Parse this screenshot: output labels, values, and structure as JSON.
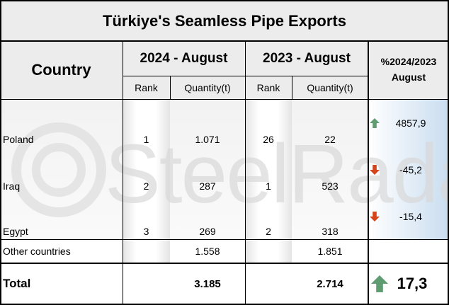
{
  "title": "Türkiye's Seamless Pipe Exports",
  "header": {
    "country": "Country",
    "period_2024": "2024 - August",
    "period_2023": "2023 - August",
    "change": "%2024/2023 August",
    "rank_2024": "Rank",
    "quantity_2024": "Quantity(t)",
    "rank_2023": "Rank",
    "quantity_2023": "Quantity(t)"
  },
  "rows": [
    {
      "country": "Poland",
      "rank_2024": "1",
      "quantity_2024": "1.071",
      "rank_2023": "26",
      "quantity_2023": "22",
      "change": "4857,9",
      "trend": "up"
    },
    {
      "country": "Iraq",
      "rank_2024": "2",
      "quantity_2024": "287",
      "rank_2023": "1",
      "quantity_2023": "523",
      "change": "-45,2",
      "trend": "down"
    },
    {
      "country": "Egypt",
      "rank_2024": "3",
      "quantity_2024": "269",
      "rank_2023": "2",
      "quantity_2023": "318",
      "change": "-15,4",
      "trend": "down"
    }
  ],
  "other": {
    "country": "Other countries",
    "quantity_2024": "1.558",
    "quantity_2023": "1.851"
  },
  "total": {
    "country": "Total",
    "quantity_2024": "3.185",
    "quantity_2023": "2.714",
    "change": "17,3",
    "trend": "up"
  },
  "watermark": "SteelRadar"
}
